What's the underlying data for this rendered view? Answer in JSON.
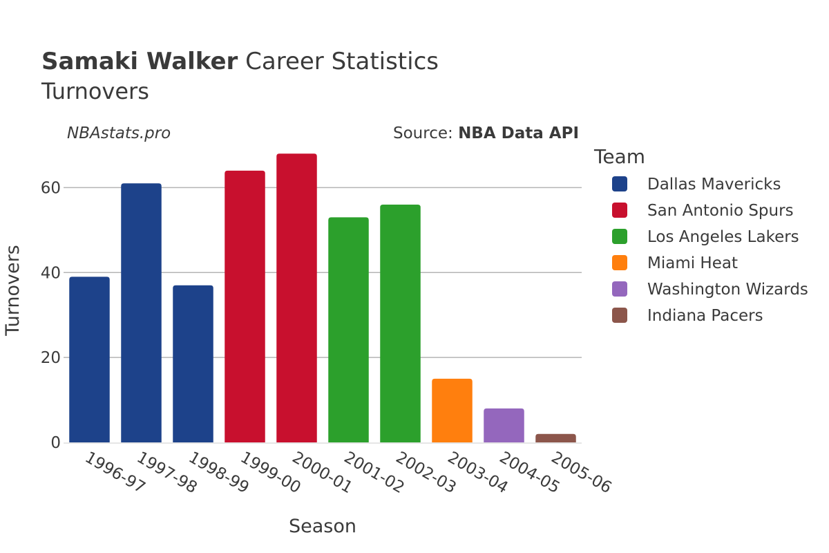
{
  "header": {
    "title_bold": "Samaki Walker",
    "title_rest": " Career Statistics",
    "subtitle": "Turnovers",
    "watermark": "NBAstats.pro",
    "source_prefix": "Source: ",
    "source_bold": "NBA Data API"
  },
  "legend": {
    "title": "Team",
    "items": [
      {
        "label": "Dallas Mavericks",
        "color": "#1d428a"
      },
      {
        "label": "San Antonio Spurs",
        "color": "#c8102e"
      },
      {
        "label": "Los Angeles Lakers",
        "color": "#2ca02c"
      },
      {
        "label": "Miami Heat",
        "color": "#ff7f0e"
      },
      {
        "label": "Washington Wizards",
        "color": "#9467bd"
      },
      {
        "label": "Indiana Pacers",
        "color": "#8c564b"
      }
    ]
  },
  "chart_data": {
    "type": "bar",
    "xlabel": "Season",
    "ylabel": "Turnovers",
    "ylim": [
      0,
      70
    ],
    "yticks": [
      0,
      20,
      40,
      60
    ],
    "grid": true,
    "legend_position": "right",
    "categories": [
      "1996-97",
      "1997-98",
      "1998-99",
      "1999-00",
      "2000-01",
      "2001-02",
      "2002-03",
      "2003-04",
      "2004-05",
      "2005-06"
    ],
    "values": [
      39,
      61,
      37,
      64,
      68,
      53,
      56,
      15,
      8,
      2
    ],
    "teams": [
      "Dallas Mavericks",
      "Dallas Mavericks",
      "Dallas Mavericks",
      "San Antonio Spurs",
      "San Antonio Spurs",
      "Los Angeles Lakers",
      "Los Angeles Lakers",
      "Miami Heat",
      "Washington Wizards",
      "Indiana Pacers"
    ]
  }
}
